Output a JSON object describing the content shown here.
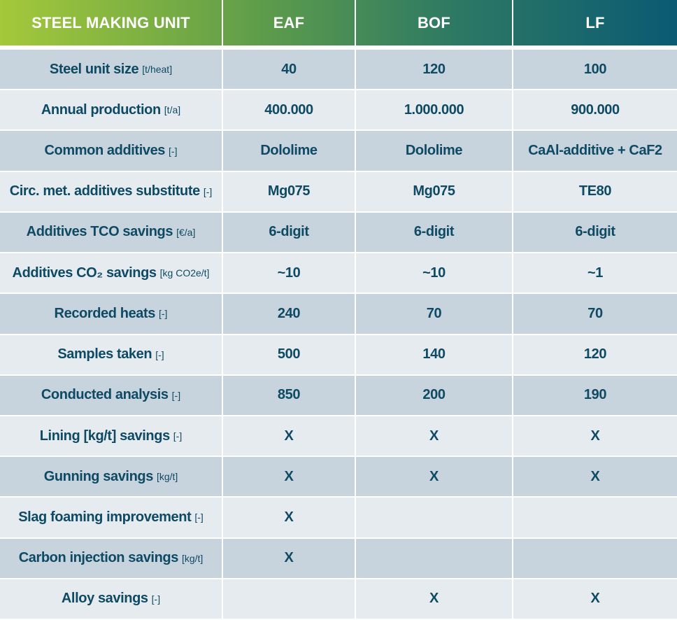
{
  "header": {
    "col0": "STEEL MAKING UNIT",
    "col1": "EAF",
    "col2": "BOF",
    "col3": "LF"
  },
  "colors": {
    "text": "#0e4a63",
    "row_dark": "#c7d3dd",
    "row_light": "#e6ebf0",
    "header_gradient": [
      "#a4c93a",
      "#5f9d4a",
      "#2f7a63",
      "#0a5a73"
    ]
  },
  "rows": [
    {
      "label": "Steel unit size",
      "unit": "[t/heat]",
      "eaf": "40",
      "bof": "120",
      "lf": "100"
    },
    {
      "label": "Annual production",
      "unit": "[t/a]",
      "eaf": "400.000",
      "bof": "1.000.000",
      "lf": "900.000"
    },
    {
      "label": "Common additives",
      "unit": "[-]",
      "eaf": "Dololime",
      "bof": "Dololime",
      "lf": "CaAl-additive + CaF2"
    },
    {
      "label": "Circ. met. additives substitute",
      "unit": "[-]",
      "eaf": "Mg075",
      "bof": "Mg075",
      "lf": "TE80"
    },
    {
      "label": "Additives TCO savings",
      "unit": "[€/a]",
      "eaf": "6-digit",
      "bof": "6-digit",
      "lf": "6-digit"
    },
    {
      "label": "Additives CO₂ savings",
      "unit": "[kg CO2e/t]",
      "eaf": "~10",
      "bof": "~10",
      "lf": "~1"
    },
    {
      "label": "Recorded heats",
      "unit": "[-]",
      "eaf": "240",
      "bof": "70",
      "lf": "70"
    },
    {
      "label": "Samples taken",
      "unit": "[-]",
      "eaf": "500",
      "bof": "140",
      "lf": "120"
    },
    {
      "label": "Conducted analysis",
      "unit": "[-]",
      "eaf": "850",
      "bof": "200",
      "lf": "190"
    },
    {
      "label": "Lining [kg/t] savings",
      "unit": "[-]",
      "eaf": "X",
      "bof": "X",
      "lf": "X"
    },
    {
      "label": "Gunning savings",
      "unit": "[kg/t]",
      "eaf": "X",
      "bof": "X",
      "lf": "X"
    },
    {
      "label": "Slag foaming improvement",
      "unit": "[-]",
      "eaf": "X",
      "bof": "",
      "lf": ""
    },
    {
      "label": "Carbon injection savings",
      "unit": "[kg/t]",
      "eaf": "X",
      "bof": "",
      "lf": ""
    },
    {
      "label": "Alloy savings",
      "unit": "[-]",
      "eaf": "",
      "bof": "X",
      "lf": "X"
    }
  ]
}
